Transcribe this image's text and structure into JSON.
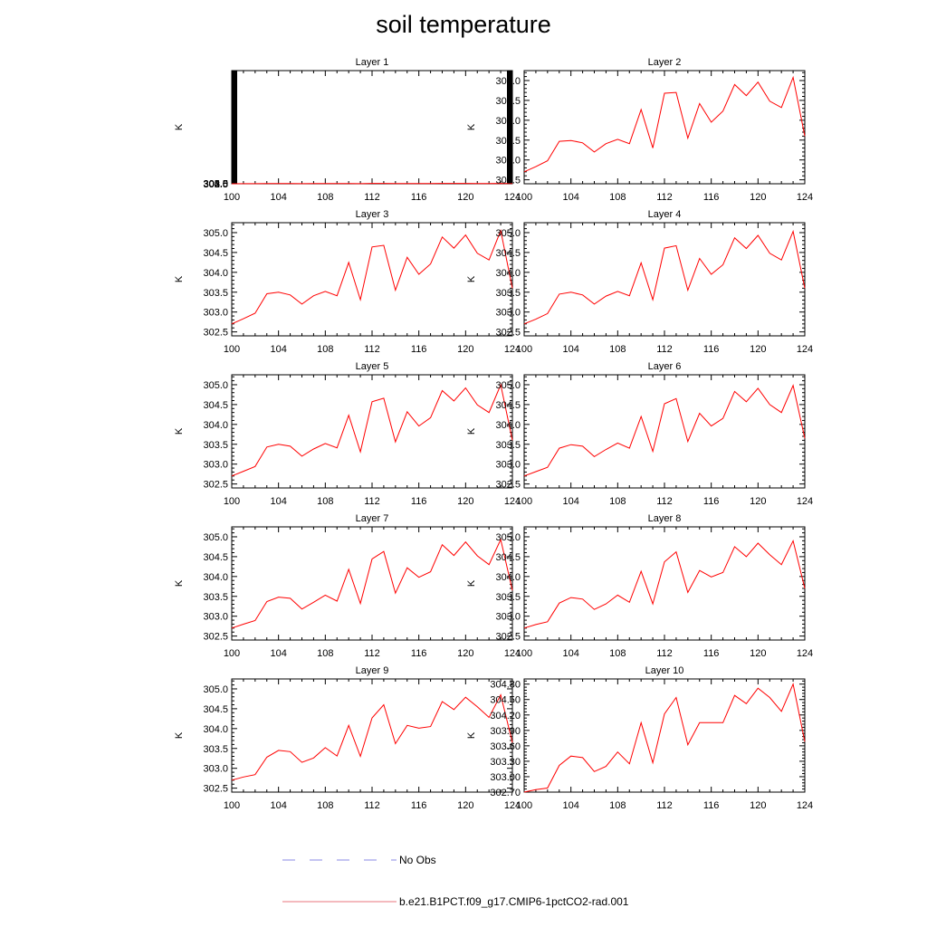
{
  "page": {
    "title": "soil temperature"
  },
  "legend": {
    "items": [
      {
        "label": "No Obs",
        "color": "#8a8ae6",
        "style": "dashed"
      },
      {
        "label": "b.e21.B1PCT.f09_g17.CMIP6-1pctCO2-rad.001",
        "color": "#e8757c",
        "style": "solid"
      }
    ]
  },
  "chart_data": [
    {
      "type": "line",
      "title": "Layer 1",
      "xlabel": "",
      "ylabel": "K",
      "xlim": [
        100,
        124
      ],
      "ylim": [
        302.4,
        1052.5
      ],
      "xticks": [
        "100",
        "104",
        "108",
        "112",
        "116",
        "120",
        "124"
      ],
      "yticks": [
        "302.5",
        "303.0",
        "303.5",
        "304.0",
        "304.5",
        "305.0"
      ],
      "x": [
        100,
        101,
        102,
        103,
        104,
        105,
        106,
        107,
        108,
        109,
        110,
        111,
        112,
        113,
        114,
        115,
        116,
        117,
        118,
        119,
        120,
        121,
        122,
        123,
        124
      ],
      "series": [
        {
          "color": "#ff0000",
          "values": [
            302.7,
            302.83,
            303.0,
            303.48,
            303.5,
            303.43,
            303.2,
            303.42,
            303.53,
            303.42,
            304.3,
            303.3,
            304.72,
            304.7,
            303.55,
            304.45,
            303.95,
            304.25,
            304.92,
            304.62,
            304.97,
            304.45,
            304.33,
            305.1,
            303.6
          ]
        }
      ]
    },
    {
      "type": "line",
      "title": "Layer 2",
      "xlabel": "",
      "ylabel": "K",
      "xlim": [
        100,
        124
      ],
      "ylim": [
        302.4,
        305.25
      ],
      "xticks": [
        "100",
        "104",
        "108",
        "112",
        "116",
        "120",
        "124"
      ],
      "yticks": [
        "302.5",
        "303.0",
        "303.5",
        "304.0",
        "304.5",
        "305.0"
      ],
      "x": [
        100,
        101,
        102,
        103,
        104,
        105,
        106,
        107,
        108,
        109,
        110,
        111,
        112,
        113,
        114,
        115,
        116,
        117,
        118,
        119,
        120,
        121,
        122,
        123,
        124
      ],
      "series": [
        {
          "color": "#ff0000",
          "values": [
            302.7,
            302.83,
            302.98,
            303.47,
            303.49,
            303.43,
            303.2,
            303.41,
            303.52,
            303.41,
            304.27,
            303.3,
            304.68,
            304.7,
            303.55,
            304.42,
            303.95,
            304.23,
            304.9,
            304.62,
            304.96,
            304.48,
            304.32,
            305.08,
            303.6
          ]
        }
      ]
    },
    {
      "type": "line",
      "title": "Layer 3",
      "xlabel": "",
      "ylabel": "K",
      "xlim": [
        100,
        124
      ],
      "ylim": [
        302.4,
        305.25
      ],
      "xticks": [
        "100",
        "104",
        "108",
        "112",
        "116",
        "120",
        "124"
      ],
      "yticks": [
        "302.5",
        "303.0",
        "303.5",
        "304.0",
        "304.5",
        "305.0"
      ],
      "x": [
        100,
        101,
        102,
        103,
        104,
        105,
        106,
        107,
        108,
        109,
        110,
        111,
        112,
        113,
        114,
        115,
        116,
        117,
        118,
        119,
        120,
        121,
        122,
        123,
        124
      ],
      "series": [
        {
          "color": "#ff0000",
          "values": [
            302.7,
            302.83,
            302.97,
            303.46,
            303.5,
            303.43,
            303.2,
            303.41,
            303.52,
            303.41,
            304.25,
            303.31,
            304.64,
            304.68,
            303.55,
            304.38,
            303.95,
            304.21,
            304.89,
            304.61,
            304.94,
            304.48,
            304.31,
            305.05,
            303.6
          ]
        }
      ]
    },
    {
      "type": "line",
      "title": "Layer 4",
      "xlabel": "",
      "ylabel": "K",
      "xlim": [
        100,
        124
      ],
      "ylim": [
        302.4,
        305.25
      ],
      "xticks": [
        "100",
        "104",
        "108",
        "112",
        "116",
        "120",
        "124"
      ],
      "yticks": [
        "302.5",
        "303.0",
        "303.5",
        "304.0",
        "304.5",
        "305.0"
      ],
      "x": [
        100,
        101,
        102,
        103,
        104,
        105,
        106,
        107,
        108,
        109,
        110,
        111,
        112,
        113,
        114,
        115,
        116,
        117,
        118,
        119,
        120,
        121,
        122,
        123,
        124
      ],
      "series": [
        {
          "color": "#ff0000",
          "values": [
            302.7,
            302.82,
            302.96,
            303.45,
            303.5,
            303.43,
            303.2,
            303.4,
            303.52,
            303.41,
            304.24,
            303.31,
            304.61,
            304.67,
            303.55,
            304.35,
            303.95,
            304.19,
            304.87,
            304.6,
            304.93,
            304.48,
            304.31,
            305.03,
            303.6
          ]
        }
      ]
    },
    {
      "type": "line",
      "title": "Layer 5",
      "xlabel": "",
      "ylabel": "K",
      "xlim": [
        100,
        124
      ],
      "ylim": [
        302.4,
        305.25
      ],
      "xticks": [
        "100",
        "104",
        "108",
        "112",
        "116",
        "120",
        "124"
      ],
      "yticks": [
        "302.5",
        "303.0",
        "303.5",
        "304.0",
        "304.5",
        "305.0"
      ],
      "x": [
        100,
        101,
        102,
        103,
        104,
        105,
        106,
        107,
        108,
        109,
        110,
        111,
        112,
        113,
        114,
        115,
        116,
        117,
        118,
        119,
        120,
        121,
        122,
        123,
        124
      ],
      "series": [
        {
          "color": "#ff0000",
          "values": [
            302.7,
            302.82,
            302.94,
            303.43,
            303.5,
            303.45,
            303.2,
            303.38,
            303.52,
            303.41,
            304.23,
            303.31,
            304.57,
            304.66,
            303.56,
            304.32,
            303.96,
            304.17,
            304.85,
            304.59,
            304.92,
            304.49,
            304.3,
            305.0,
            303.6
          ]
        }
      ]
    },
    {
      "type": "line",
      "title": "Layer 6",
      "xlabel": "",
      "ylabel": "K",
      "xlim": [
        100,
        124
      ],
      "ylim": [
        302.4,
        305.25
      ],
      "xticks": [
        "100",
        "104",
        "108",
        "112",
        "116",
        "120",
        "124"
      ],
      "yticks": [
        "302.5",
        "303.0",
        "303.5",
        "304.0",
        "304.5",
        "305.0"
      ],
      "x": [
        100,
        101,
        102,
        103,
        104,
        105,
        106,
        107,
        108,
        109,
        110,
        111,
        112,
        113,
        114,
        115,
        116,
        117,
        118,
        119,
        120,
        121,
        122,
        123,
        124
      ],
      "series": [
        {
          "color": "#ff0000",
          "values": [
            302.7,
            302.81,
            302.92,
            303.4,
            303.49,
            303.45,
            303.19,
            303.37,
            303.53,
            303.4,
            304.2,
            303.32,
            304.52,
            304.65,
            303.57,
            304.28,
            303.96,
            304.15,
            304.83,
            304.57,
            304.91,
            304.5,
            304.3,
            304.98,
            303.65
          ]
        }
      ]
    },
    {
      "type": "line",
      "title": "Layer 7",
      "xlabel": "",
      "ylabel": "K",
      "xlim": [
        100,
        124
      ],
      "ylim": [
        302.4,
        305.25
      ],
      "xticks": [
        "100",
        "104",
        "108",
        "112",
        "116",
        "120",
        "124"
      ],
      "yticks": [
        "302.5",
        "303.0",
        "303.5",
        "304.0",
        "304.5",
        "305.0"
      ],
      "x": [
        100,
        101,
        102,
        103,
        104,
        105,
        106,
        107,
        108,
        109,
        110,
        111,
        112,
        113,
        114,
        115,
        116,
        117,
        118,
        119,
        120,
        121,
        122,
        123,
        124
      ],
      "series": [
        {
          "color": "#ff0000",
          "values": [
            302.7,
            302.8,
            302.89,
            303.37,
            303.48,
            303.45,
            303.18,
            303.35,
            303.53,
            303.38,
            304.18,
            303.32,
            304.44,
            304.63,
            303.58,
            304.22,
            303.98,
            304.12,
            304.8,
            304.53,
            304.87,
            304.52,
            304.3,
            304.93,
            303.65
          ]
        }
      ]
    },
    {
      "type": "line",
      "title": "Layer 8",
      "xlabel": "",
      "ylabel": "K",
      "xlim": [
        100,
        124
      ],
      "ylim": [
        302.4,
        305.25
      ],
      "xticks": [
        "100",
        "104",
        "108",
        "112",
        "116",
        "120",
        "124"
      ],
      "yticks": [
        "302.5",
        "303.0",
        "303.5",
        "304.0",
        "304.5",
        "305.0"
      ],
      "x": [
        100,
        101,
        102,
        103,
        104,
        105,
        106,
        107,
        108,
        109,
        110,
        111,
        112,
        113,
        114,
        115,
        116,
        117,
        118,
        119,
        120,
        121,
        122,
        123,
        124
      ],
      "series": [
        {
          "color": "#ff0000",
          "values": [
            302.7,
            302.79,
            302.86,
            303.33,
            303.47,
            303.43,
            303.17,
            303.31,
            303.53,
            303.35,
            304.13,
            303.31,
            304.37,
            304.62,
            303.6,
            304.15,
            303.99,
            304.1,
            304.75,
            304.5,
            304.84,
            304.55,
            304.3,
            304.9,
            303.7
          ]
        }
      ]
    },
    {
      "type": "line",
      "title": "Layer 9",
      "xlabel": "",
      "ylabel": "K",
      "xlim": [
        100,
        124
      ],
      "ylim": [
        302.4,
        305.25
      ],
      "xticks": [
        "100",
        "104",
        "108",
        "112",
        "116",
        "120",
        "124"
      ],
      "yticks": [
        "302.5",
        "303.0",
        "303.5",
        "304.0",
        "304.5",
        "305.0"
      ],
      "x": [
        100,
        101,
        102,
        103,
        104,
        105,
        106,
        107,
        108,
        109,
        110,
        111,
        112,
        113,
        114,
        115,
        116,
        117,
        118,
        119,
        120,
        121,
        122,
        123,
        124
      ],
      "series": [
        {
          "color": "#ff0000",
          "values": [
            302.7,
            302.78,
            302.84,
            303.28,
            303.45,
            303.42,
            303.15,
            303.26,
            303.52,
            303.31,
            304.08,
            303.3,
            304.27,
            304.6,
            303.62,
            304.08,
            304.01,
            304.05,
            304.68,
            304.48,
            304.79,
            304.55,
            304.28,
            304.85,
            303.65
          ]
        }
      ]
    },
    {
      "type": "line",
      "title": "Layer 10",
      "xlabel": "",
      "ylabel": "K",
      "xlim": [
        100,
        124
      ],
      "ylim": [
        302.7,
        304.9
      ],
      "xticks": [
        "100",
        "104",
        "108",
        "112",
        "116",
        "120",
        "124"
      ],
      "yticks": [
        "302.70",
        "303.00",
        "303.30",
        "303.60",
        "303.90",
        "304.20",
        "304.50",
        "304.80"
      ],
      "x": [
        100,
        101,
        102,
        103,
        104,
        105,
        106,
        107,
        108,
        109,
        110,
        111,
        112,
        113,
        114,
        115,
        116,
        117,
        118,
        119,
        120,
        121,
        122,
        123,
        124
      ],
      "series": [
        {
          "color": "#ff0000",
          "values": [
            302.7,
            302.75,
            302.78,
            303.22,
            303.4,
            303.37,
            303.1,
            303.2,
            303.48,
            303.25,
            304.05,
            303.27,
            304.22,
            304.54,
            303.62,
            304.05,
            304.05,
            304.05,
            304.58,
            304.42,
            304.72,
            304.54,
            304.27,
            304.8,
            303.68
          ]
        }
      ]
    }
  ]
}
